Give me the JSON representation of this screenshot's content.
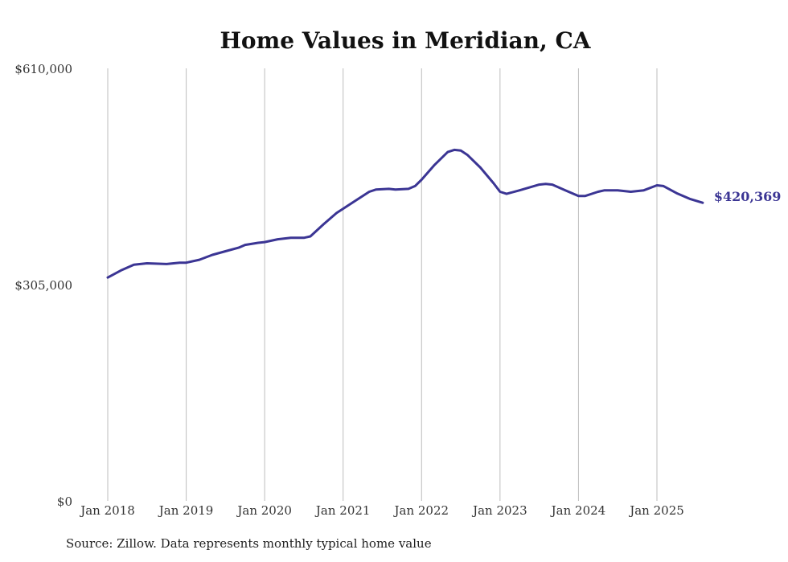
{
  "chart_data": {
    "type": "line",
    "title": "Home Values in Meridian, CA",
    "xlabel": "",
    "ylabel": "",
    "ylim": [
      0,
      610000
    ],
    "y_ticks": [
      {
        "value": 0,
        "label": "$0"
      },
      {
        "value": 305000,
        "label": "$305,000"
      },
      {
        "value": 610000,
        "label": "$610,000"
      }
    ],
    "x_ticks": [
      {
        "value": 2018.0,
        "label": "Jan 2018"
      },
      {
        "value": 2019.0,
        "label": "Jan 2019"
      },
      {
        "value": 2020.0,
        "label": "Jan 2020"
      },
      {
        "value": 2021.0,
        "label": "Jan 2021"
      },
      {
        "value": 2022.0,
        "label": "Jan 2022"
      },
      {
        "value": 2023.0,
        "label": "Jan 2023"
      },
      {
        "value": 2024.0,
        "label": "Jan 2024"
      },
      {
        "value": 2025.0,
        "label": "Jan 2025"
      }
    ],
    "xlim": [
      2018.0,
      2025.6
    ],
    "grid": "vertical",
    "legend": "none",
    "series_color": "#3b3594",
    "end_label": "$420,369",
    "series": [
      {
        "x": [
          2018.0,
          2018.167,
          2018.333,
          2018.5,
          2018.75,
          2018.917,
          2019.0,
          2019.167,
          2019.333,
          2019.5,
          2019.667,
          2019.75,
          2019.917,
          2020.0,
          2020.167,
          2020.333,
          2020.5,
          2020.583,
          2020.75,
          2020.917,
          2021.0,
          2021.167,
          2021.333,
          2021.417,
          2021.583,
          2021.667,
          2021.833,
          2021.917,
          2022.0,
          2022.167,
          2022.333,
          2022.417,
          2022.5,
          2022.583,
          2022.75,
          2022.917,
          2023.0,
          2023.083,
          2023.25,
          2023.5,
          2023.583,
          2023.667,
          2023.833,
          2024.0,
          2024.083,
          2024.25,
          2024.333,
          2024.5,
          2024.667,
          2024.833,
          2025.0,
          2025.083,
          2025.25,
          2025.417,
          2025.583
        ],
        "values": [
          315000,
          325000,
          333000,
          335000,
          334000,
          336000,
          336000,
          340000,
          347000,
          352000,
          357000,
          361000,
          364000,
          365000,
          369000,
          371000,
          371000,
          373000,
          390000,
          406000,
          412000,
          424000,
          436000,
          439000,
          440000,
          439000,
          440000,
          444000,
          453000,
          474000,
          492000,
          495000,
          494000,
          488000,
          470000,
          448000,
          436000,
          433000,
          438000,
          446000,
          447000,
          446000,
          438000,
          430000,
          430000,
          436000,
          438000,
          438000,
          436000,
          438000,
          445000,
          444000,
          434000,
          426000,
          420369
        ]
      }
    ]
  },
  "footer": {
    "source_note": "Source: Zillow. Data represents monthly typical home value"
  }
}
